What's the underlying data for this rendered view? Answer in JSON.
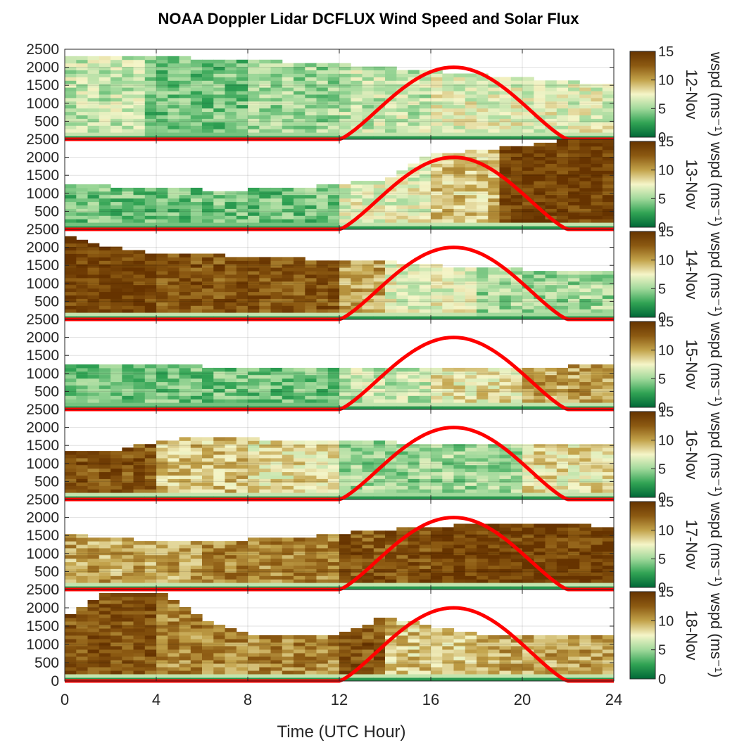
{
  "chart_data": {
    "type": "heatmap",
    "title": "NOAA Doppler Lidar DCFLUX Wind Speed and Solar Flux",
    "xlabel": "Time (UTC Hour)",
    "x_ticks": [
      0,
      4,
      8,
      12,
      16,
      20,
      24
    ],
    "xlim": [
      0,
      24
    ],
    "y_ticks": [
      0,
      500,
      1000,
      1500,
      2000,
      2500
    ],
    "ylim": [
      0,
      2500
    ],
    "grid": true,
    "colorbar": {
      "label": "wspd (ms⁻¹)",
      "ticks": [
        0,
        5,
        10,
        15
      ],
      "range": [
        0,
        15
      ],
      "colors": [
        "#006837",
        "#31a354",
        "#a1d99b",
        "#f5f5c8",
        "#c2a24a",
        "#8c5a12",
        "#663300"
      ]
    },
    "solar_flux_curve": {
      "color": "#ff0000",
      "sunrise_hour": 12,
      "sunset_hour": 22,
      "peak_hour": 17,
      "peak_axis_value": 2000,
      "baseline_axis_value": 0
    },
    "panels": [
      {
        "day": "12-Nov",
        "top_alt": [
          2250,
          2350,
          2300,
          2250,
          2200,
          2150,
          2100,
          2000,
          1900,
          1800,
          1700,
          1600,
          1500
        ],
        "regimes": [
          [
            0,
            3.5,
            6
          ],
          [
            3.5,
            8,
            4
          ],
          [
            8,
            12,
            5
          ],
          [
            12,
            16,
            6
          ],
          [
            16,
            18,
            7
          ],
          [
            18,
            24,
            7
          ]
        ]
      },
      {
        "day": "13-Nov",
        "top_alt": [
          1300,
          1200,
          1150,
          1100,
          1100,
          1150,
          1250,
          1400,
          2100,
          2200,
          2300,
          2500,
          2500
        ],
        "regimes": [
          [
            0,
            6,
            4
          ],
          [
            6,
            12,
            4
          ],
          [
            12,
            16,
            7
          ],
          [
            16,
            19,
            9
          ],
          [
            19,
            24,
            14
          ]
        ]
      },
      {
        "day": "14-Nov",
        "top_alt": [
          2300,
          2000,
          1850,
          1800,
          1750,
          1700,
          1650,
          1600,
          1500,
          1450,
          1400,
          1350,
          1300
        ],
        "regimes": [
          [
            0,
            4,
            14
          ],
          [
            4,
            12,
            13
          ],
          [
            12,
            14,
            10
          ],
          [
            14,
            18,
            7
          ],
          [
            18,
            24,
            5
          ]
        ]
      },
      {
        "day": "15-Nov",
        "top_alt": [
          1300,
          1250,
          1250,
          1200,
          1200,
          1200,
          1150,
          1150,
          1150,
          1150,
          1200,
          1200,
          1250
        ],
        "regimes": [
          [
            0,
            6,
            4
          ],
          [
            6,
            12,
            4
          ],
          [
            12,
            16,
            6
          ],
          [
            16,
            20,
            8
          ],
          [
            20,
            24,
            10
          ]
        ]
      },
      {
        "day": "16-Nov",
        "top_alt": [
          1300,
          1350,
          1600,
          1750,
          1700,
          1650,
          1600,
          1600,
          1550,
          1550,
          1550,
          1550,
          1550
        ],
        "regimes": [
          [
            0,
            4,
            13
          ],
          [
            4,
            8,
            9
          ],
          [
            8,
            12,
            8
          ],
          [
            12,
            16,
            5
          ],
          [
            16,
            20,
            5
          ],
          [
            20,
            24,
            8
          ]
        ]
      },
      {
        "day": "17-Nov",
        "top_alt": [
          1550,
          1450,
          1350,
          1350,
          1400,
          1450,
          1550,
          1650,
          1750,
          1800,
          1850,
          1800,
          1750
        ],
        "regimes": [
          [
            0,
            6,
            10
          ],
          [
            6,
            12,
            11
          ],
          [
            12,
            16,
            13
          ],
          [
            16,
            20,
            14
          ],
          [
            20,
            24,
            14
          ]
        ]
      },
      {
        "day": "18-Nov",
        "top_alt": [
          1700,
          2450,
          2450,
          1700,
          1300,
          1250,
          1300,
          1750,
          1500,
          1300,
          1250,
          1250,
          1250
        ],
        "regimes": [
          [
            0,
            4,
            13
          ],
          [
            4,
            8,
            11
          ],
          [
            8,
            12,
            11
          ],
          [
            12,
            14,
            13
          ],
          [
            14,
            18,
            9
          ],
          [
            18,
            24,
            10
          ]
        ]
      }
    ]
  }
}
